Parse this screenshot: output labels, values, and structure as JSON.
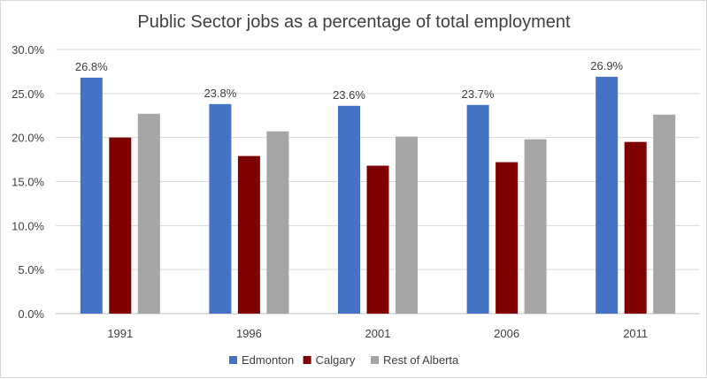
{
  "chart_data": {
    "type": "bar",
    "title": "Public Sector jobs as a percentage of total employment",
    "xlabel": "",
    "ylabel": "",
    "categories": [
      "1991",
      "1996",
      "2001",
      "2006",
      "2011"
    ],
    "series": [
      {
        "name": "Edmonton",
        "color": "#4472c4",
        "values": [
          26.8,
          23.8,
          23.6,
          23.7,
          26.9
        ]
      },
      {
        "name": "Calgary",
        "color": "#7f0000",
        "values": [
          20.0,
          17.9,
          16.8,
          17.2,
          19.5
        ]
      },
      {
        "name": "Rest of Alberta",
        "color": "#a5a5a5",
        "values": [
          22.7,
          20.7,
          20.1,
          19.8,
          22.6
        ]
      }
    ],
    "ylim": [
      0,
      30
    ],
    "y_ticks": [
      "0.0%",
      "5.0%",
      "10.0%",
      "15.0%",
      "20.0%",
      "25.0%",
      "30.0%"
    ],
    "data_labels": {
      "series": "Edmonton",
      "texts": [
        "26.8%",
        "23.8%",
        "23.6%",
        "23.7%",
        "26.9%"
      ]
    },
    "grid": true,
    "legend_position": "bottom"
  }
}
